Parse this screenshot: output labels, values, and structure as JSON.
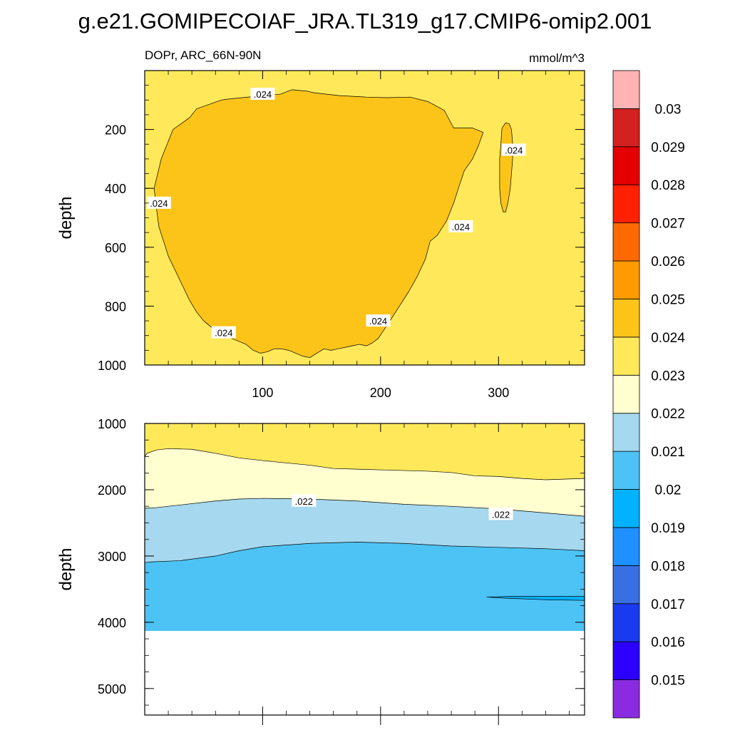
{
  "chart_data": {
    "title": "g.e21.GOMIPECOIAF_JRA.TL319_g17.CMIP6-omip2.001",
    "type": "contour",
    "variable": "DOPr",
    "region": "ARC_66N-90N",
    "units": "mmol/m^3",
    "colorbar": {
      "levels": [
        0.015,
        0.016,
        0.017,
        0.018,
        0.019,
        0.02,
        0.021,
        0.022,
        0.023,
        0.024,
        0.025,
        0.026,
        0.027,
        0.028,
        0.029,
        0.03
      ],
      "tick_labels": [
        "0.015",
        "0.016",
        "0.017",
        "0.018",
        "0.019",
        "0.02",
        "0.021",
        "0.022",
        "0.023",
        "0.024",
        "0.025",
        "0.026",
        "0.027",
        "0.028",
        "0.029",
        "0.03"
      ],
      "colors": [
        "#8a2be2",
        "#2b00ff",
        "#1a3aef",
        "#3a6ee3",
        "#1e90ff",
        "#00b2ff",
        "#4dc3f5",
        "#a6d8ef",
        "#ffffd0",
        "#ffe95a",
        "#fcc418",
        "#ff9b00",
        "#ff6a00",
        "#ff2100",
        "#e50000",
        "#d32020",
        "#ffb3b5"
      ]
    },
    "panels": [
      {
        "name": "upper",
        "subtitle_left": "DOPr, ARC_66N-90N",
        "subtitle_right": "mmol/m^3",
        "xlabel": "",
        "ylabel": "depth",
        "xlim": [
          0,
          373
        ],
        "ylim": [
          1000,
          0
        ],
        "xticks": [
          100,
          200,
          300
        ],
        "xtick_labels": [
          "100",
          "200",
          "300"
        ],
        "yticks": [
          200,
          400,
          600,
          800,
          1000
        ],
        "ytick_labels": [
          "200",
          "400",
          "600",
          "800",
          "1000"
        ],
        "background_value": 0.0235,
        "regions": [
          {
            "value": 0.0245,
            "x": [
              8,
              14,
              24,
              38,
              44,
              58,
              65,
              68,
              75,
              100,
              115,
              125,
              138,
              143,
              165,
              188,
              205,
              225,
              240,
              254,
              262,
              278,
              287,
              283,
              278,
              271,
              266,
              262,
              256,
              248,
              242,
              238,
              231,
              224,
              216,
              208,
              203,
              198,
              193,
              188,
              182,
              176,
              170,
              164,
              158,
              152,
              146,
              140,
              134,
              128,
              122,
              116,
              110,
              104,
              98,
              92,
              86,
              80,
              74,
              68,
              62,
              56,
              50,
              44,
              38,
              32,
              26,
              20,
              16,
              12,
              10,
              8
            ],
            "y": [
              400,
              300,
              200,
              160,
              130,
              110,
              100,
              98,
              95,
              85,
              80,
              65,
              70,
              75,
              85,
              90,
              92,
              90,
              105,
              135,
              195,
              195,
              210,
              255,
              300,
              340,
              400,
              450,
              510,
              560,
              580,
              640,
              700,
              750,
              800,
              850,
              880,
              910,
              925,
              935,
              930,
              935,
              940,
              945,
              950,
              945,
              960,
              975,
              970,
              960,
              950,
              945,
              945,
              955,
              960,
              950,
              930,
              920,
              910,
              900,
              885,
              870,
              850,
              820,
              780,
              730,
              680,
              630,
              580,
              530,
              470,
              400
            ]
          },
          {
            "value": 0.0245,
            "x": [
              303,
              306,
              309,
              311,
              312,
              312,
              311,
              310,
              308,
              306,
              304,
              302,
              301,
              301,
              302,
              303
            ],
            "y": [
              195,
              178,
              180,
              200,
              250,
              300,
              350,
              400,
              450,
              480,
              480,
              450,
              400,
              300,
              250,
              195
            ]
          }
        ],
        "contour_labels": [
          {
            "text": ".024",
            "x": 100,
            "y": 80
          },
          {
            "text": ".024",
            "x": 12,
            "y": 450
          },
          {
            "text": ".024",
            "x": 268,
            "y": 530
          },
          {
            "text": ".024",
            "x": 313,
            "y": 270
          },
          {
            "text": ".024",
            "x": 67,
            "y": 890
          },
          {
            "text": ".024",
            "x": 198,
            "y": 850
          }
        ]
      },
      {
        "name": "lower",
        "xlabel": "",
        "ylabel": "depth",
        "xlim": [
          0,
          373
        ],
        "ylim": [
          5400,
          1000
        ],
        "xtick_labels": [],
        "yticks": [
          1000,
          2000,
          3000,
          4000,
          5000
        ],
        "ytick_labels": [
          "1000",
          "2000",
          "3000",
          "4000",
          "5000"
        ],
        "data_bottom": 4130,
        "background_value": 0.0235,
        "bands": [
          {
            "value": 0.0225,
            "x": [
              0,
              2,
              10,
              20,
              40,
              60,
              80,
              100,
              140,
              160,
              180,
              200,
              240,
              260,
              280,
              300,
              320,
              340,
              373
            ],
            "y_top": [
              1500,
              1450,
              1400,
              1380,
              1390,
              1450,
              1520,
              1560,
              1630,
              1680,
              1690,
              1700,
              1720,
              1740,
              1790,
              1800,
              1830,
              1850,
              1830
            ]
          },
          {
            "value": 0.0215,
            "x": [
              0,
              10,
              30,
              60,
              80,
              100,
              140,
              180,
              220,
              260,
              300,
              340,
              373
            ],
            "y_top": [
              2280,
              2270,
              2230,
              2170,
              2140,
              2130,
              2140,
              2170,
              2220,
              2250,
              2290,
              2350,
              2400
            ]
          },
          {
            "value": 0.0205,
            "x": [
              0,
              5,
              30,
              60,
              80,
              100,
              140,
              180,
              220,
              260,
              300,
              340,
              373
            ],
            "y_top": [
              3100,
              3090,
              3070,
              3000,
              2920,
              2860,
              2810,
              2790,
              2810,
              2850,
              2870,
              2890,
              2920
            ]
          }
        ],
        "regions": [
          {
            "value": 0.0195,
            "x": [
              290,
              310,
              340,
              373,
              373,
              340,
              310,
              290
            ],
            "y": [
              3620,
              3610,
              3610,
              3610,
              3670,
              3660,
              3640,
              3620
            ]
          }
        ],
        "contour_labels": [
          {
            "text": ".022",
            "x": 135,
            "y": 2170
          },
          {
            "text": ".022",
            "x": 302,
            "y": 2370
          }
        ]
      }
    ]
  }
}
